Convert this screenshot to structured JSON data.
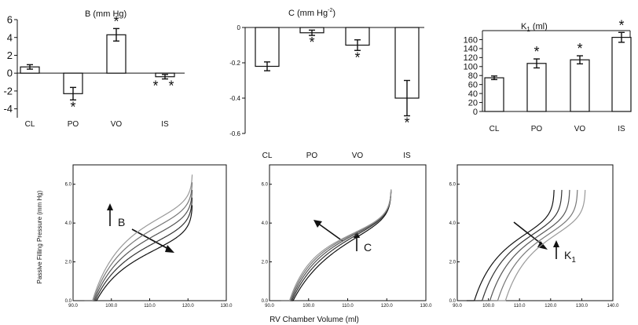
{
  "chart_data": [
    {
      "type": "bar",
      "title": "B (mm Hg)",
      "categories": [
        "CL",
        "PO",
        "VO",
        "IS"
      ],
      "values": [
        0.7,
        -2.3,
        4.3,
        -0.4
      ],
      "errors": [
        0.25,
        0.7,
        0.7,
        0.25
      ],
      "significance": [
        "",
        "*",
        "*",
        "**"
      ],
      "ylim": [
        -5,
        6
      ],
      "yticks": [
        -4,
        -2,
        0,
        2,
        4,
        6
      ],
      "ytick_labels": [
        "-4",
        "-2",
        "0",
        "2",
        "4",
        "6"
      ]
    },
    {
      "type": "bar",
      "title_main": "C (mm Hg",
      "title_sup": "-2",
      "title_end": ")",
      "categories": [
        "CL",
        "PO",
        "VO",
        "IS"
      ],
      "values": [
        -0.22,
        -0.03,
        -0.1,
        -0.4
      ],
      "errors": [
        0.025,
        0.015,
        0.03,
        0.1
      ],
      "significance": [
        "",
        "*",
        "*",
        "*"
      ],
      "ylim": [
        -0.6,
        0
      ],
      "yticks": [
        0,
        -0.2,
        -0.4,
        -0.6
      ],
      "ytick_labels": [
        "0",
        "-0.2",
        "-0.4",
        "-0.6"
      ]
    },
    {
      "type": "bar",
      "title_main": "K",
      "title_sub": "1",
      "title_end": " (ml)",
      "categories": [
        "CL",
        "PO",
        "VO",
        "IS"
      ],
      "values": [
        75,
        107,
        115,
        165
      ],
      "errors": [
        4,
        10,
        9,
        11
      ],
      "significance": [
        "",
        "*",
        "*",
        "*"
      ],
      "ylim": [
        0,
        180
      ],
      "yticks": [
        0,
        20,
        40,
        60,
        80,
        100,
        120,
        140,
        160
      ],
      "ytick_labels": [
        "0",
        "20",
        "40",
        "60",
        "80",
        "100",
        "120",
        "140",
        "160"
      ]
    },
    {
      "type": "line",
      "xlim": [
        90,
        130
      ],
      "ylim": [
        0,
        7
      ],
      "xticks": [
        90,
        100,
        110,
        120,
        130
      ],
      "xtick_labels": [
        "90.0",
        "100.0",
        "110.0",
        "120.0",
        "130.0"
      ],
      "yticks": [
        0,
        2,
        4,
        6
      ],
      "ytick_labels": [
        "0.0",
        "2.0",
        "4.0",
        "6.0"
      ],
      "ylabel": "Passive Filling Pressure (mm Hg)",
      "param_label": "B",
      "model": {
        "v0": 93,
        "vmax": 121.2,
        "c": 0.07,
        "a": 0.4,
        "scale": 5,
        "B_values": [
          2.2,
          2.6,
          3.0,
          3.4,
          3.8
        ],
        "C_values": [
          0.07
        ],
        "V_shifts": [
          0
        ]
      }
    },
    {
      "type": "line",
      "xlim": [
        90,
        130
      ],
      "ylim": [
        0,
        7
      ],
      "xticks": [
        90,
        100,
        110,
        120,
        130
      ],
      "xtick_labels": [
        "90.0",
        "100.0",
        "110.0",
        "120.0",
        "130.0"
      ],
      "yticks": [
        0,
        2,
        4,
        6
      ],
      "ytick_labels": [
        "0.0",
        "2.0",
        "4.0",
        "6.0"
      ],
      "xlabel": "RV Chamber Volume (ml)",
      "param_label": "C",
      "model": {
        "v0": 93,
        "vmax": 121.2,
        "B": 3.0,
        "a": 0.4,
        "scale": 5,
        "B_values": [
          3.0
        ],
        "C_values": [
          0.05,
          0.06,
          0.07,
          0.08,
          0.09
        ],
        "V_shifts": [
          0
        ]
      }
    },
    {
      "type": "line",
      "xlim": [
        90,
        140
      ],
      "ylim": [
        0,
        7
      ],
      "xticks": [
        90,
        100,
        110,
        120,
        130,
        140
      ],
      "xtick_labels": [
        "90.0",
        "100.0",
        "110.0",
        "120.0",
        "130.0",
        "140.0"
      ],
      "yticks": [
        0,
        2,
        4,
        6
      ],
      "ytick_labels": [
        "0.0",
        "2.0",
        "4.0",
        "6.0"
      ],
      "param_label": "K",
      "param_sub": "1",
      "model": {
        "v0": 93,
        "vmax": 121.2,
        "B": 3.0,
        "c": 0.07,
        "a": 0.4,
        "scale": 5,
        "B_values": [
          3.0
        ],
        "C_values": [
          0.07
        ],
        "V_shifts": [
          0,
          2.5,
          5,
          7.5,
          10
        ]
      }
    }
  ]
}
